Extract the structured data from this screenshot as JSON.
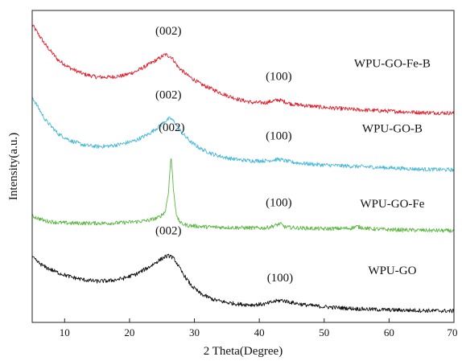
{
  "chart_data": {
    "type": "line",
    "xlabel": "2 Theta(Degree)",
    "ylabel": "Intensity(a.u.)",
    "xlim": [
      5,
      70
    ],
    "xticks": [
      10,
      20,
      30,
      40,
      50,
      60,
      70
    ],
    "y_ticks_shown": false,
    "grid": false,
    "colors": {
      "WPU-GO-Fe-B": "#e0202e",
      "WPU-GO-B": "#4ab8d8",
      "WPU-GO-Fe": "#5db744",
      "WPU-GO": "#111111"
    },
    "series": [
      {
        "name": "WPU-GO-Fe-B",
        "x": [
          5,
          7,
          9,
          11,
          13,
          15,
          17,
          19,
          21,
          23,
          24.5,
          25.5,
          26.5,
          27.5,
          29,
          31,
          33,
          35,
          37,
          39,
          41,
          43,
          45,
          47,
          50,
          55,
          60,
          65,
          70
        ],
        "y": [
          10.1,
          9.4,
          8.85,
          8.55,
          8.35,
          8.25,
          8.25,
          8.3,
          8.45,
          8.7,
          8.9,
          9.05,
          8.95,
          8.6,
          8.3,
          8.0,
          7.8,
          7.6,
          7.45,
          7.35,
          7.35,
          7.45,
          7.3,
          7.25,
          7.18,
          7.1,
          7.05,
          7.0,
          6.98
        ],
        "peak_labels": [
          {
            "text": "(002)",
            "x": 26
          },
          {
            "text": "(100)",
            "x": 43
          }
        ]
      },
      {
        "name": "WPU-GO-B",
        "x": [
          5,
          7,
          9,
          11,
          13,
          15,
          17,
          19,
          21,
          23,
          24.5,
          25.5,
          26.3,
          27,
          28,
          29.5,
          31,
          33,
          35,
          37,
          39,
          41,
          43,
          45,
          47,
          50,
          55,
          60,
          65,
          70
        ],
        "y": [
          7.55,
          6.75,
          6.25,
          6.0,
          5.85,
          5.8,
          5.82,
          5.9,
          6.02,
          6.25,
          6.5,
          6.7,
          6.8,
          6.65,
          6.3,
          5.95,
          5.72,
          5.52,
          5.4,
          5.33,
          5.3,
          5.3,
          5.35,
          5.25,
          5.2,
          5.15,
          5.1,
          5.05,
          5.0,
          4.98
        ]
      },
      {
        "name": "WPU-GO-Fe",
        "x": [
          5,
          7,
          9,
          11,
          13,
          15,
          17,
          19,
          21,
          23,
          24.5,
          25.5,
          26,
          26.4,
          26.8,
          27.3,
          28,
          29,
          31,
          33,
          35,
          37,
          39,
          41,
          42.5,
          43.2,
          44,
          46,
          50,
          54,
          55,
          57,
          60,
          65,
          70
        ],
        "y": [
          3.35,
          3.18,
          3.12,
          3.1,
          3.1,
          3.1,
          3.1,
          3.12,
          3.15,
          3.2,
          3.3,
          3.5,
          4.2,
          5.5,
          4.2,
          3.3,
          3.08,
          3.02,
          2.98,
          2.96,
          2.95,
          2.94,
          2.93,
          2.93,
          3.02,
          3.08,
          2.96,
          2.93,
          2.9,
          2.92,
          2.98,
          2.9,
          2.87,
          2.85,
          2.83
        ]
      },
      {
        "name": "WPU-GO",
        "x": [
          5,
          6,
          7,
          9,
          11,
          13,
          15,
          17,
          19,
          21,
          23,
          24.5,
          25.5,
          26.3,
          27,
          28,
          29.5,
          31,
          33,
          35,
          37,
          39,
          41,
          42.5,
          43.5,
          45,
          47,
          50,
          55,
          60,
          65,
          70
        ],
        "y": [
          1.9,
          1.7,
          1.55,
          1.35,
          1.2,
          1.1,
          1.05,
          1.07,
          1.15,
          1.3,
          1.55,
          1.78,
          1.92,
          1.95,
          1.8,
          1.4,
          0.9,
          0.6,
          0.4,
          0.3,
          0.24,
          0.22,
          0.25,
          0.35,
          0.38,
          0.3,
          0.22,
          0.15,
          0.08,
          0.04,
          0.02,
          0.0
        ]
      }
    ],
    "peak_annotations": [
      {
        "series": "WPU-GO-Fe-B",
        "labels": [
          {
            "text": "(002)",
            "x": 26,
            "y": 9.75
          },
          {
            "text": "(100)",
            "x": 43,
            "y": 8.15
          }
        ]
      },
      {
        "series": "WPU-GO-B",
        "labels": [
          {
            "text": "(002)",
            "x": 26,
            "y": 7.5
          },
          {
            "text": "(100)",
            "x": 43,
            "y": 6.05
          }
        ]
      },
      {
        "series": "WPU-GO-Fe",
        "labels": [
          {
            "text": "(002)",
            "x": 26.5,
            "y": 6.35
          },
          {
            "text": "(100)",
            "x": 43,
            "y": 3.7
          }
        ]
      },
      {
        "series": "WPU-GO",
        "labels": [
          {
            "text": "(002)",
            "x": 26,
            "y": 2.7
          },
          {
            "text": "(100)",
            "x": 43.2,
            "y": 1.05
          }
        ]
      }
    ],
    "series_labels": [
      {
        "text": "WPU-GO-Fe-B",
        "x": 60.5,
        "y": 8.6
      },
      {
        "text": "WPU-GO-B",
        "x": 60.5,
        "y": 6.3
      },
      {
        "text": "WPU-GO-Fe",
        "x": 60.5,
        "y": 3.65
      },
      {
        "text": "WPU-GO",
        "x": 60.5,
        "y": 1.3
      }
    ],
    "ylim": [
      -0.4,
      10.6
    ]
  }
}
